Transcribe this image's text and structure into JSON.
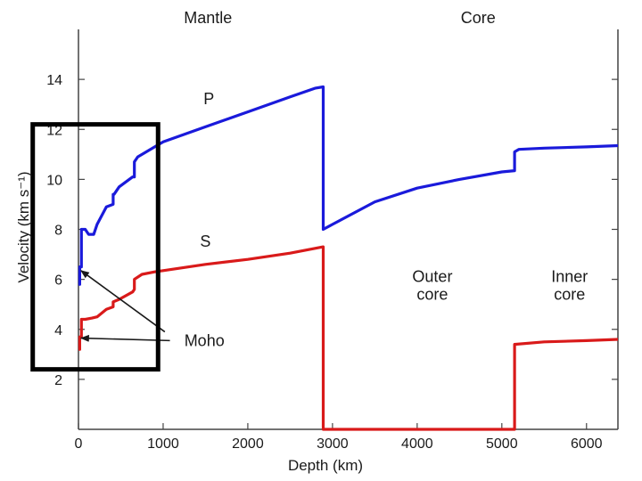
{
  "chart_data": {
    "type": "line",
    "title": "",
    "xlabel": "Depth (km)",
    "ylabel": "Velocity (km s⁻¹)",
    "xlim": [
      0,
      6371
    ],
    "ylim": [
      0,
      16
    ],
    "xticks": [
      0,
      1000,
      2000,
      3000,
      4000,
      5000,
      6000
    ],
    "yticks": [
      2,
      4,
      6,
      8,
      10,
      12,
      14
    ],
    "x_origin_label": "0",
    "regions": [
      {
        "name": "mantle",
        "label": "Mantle",
        "x": 1530
      },
      {
        "name": "core",
        "label": "Core",
        "x": 4720
      }
    ],
    "annotations": [
      {
        "name": "outer-core-label",
        "lines": [
          "Outer",
          "core"
        ],
        "x": 4180,
        "y": 5.9
      },
      {
        "name": "inner-core-label",
        "lines": [
          "Inner",
          "core"
        ],
        "x": 5800,
        "y": 5.9
      },
      {
        "name": "moho-label",
        "text": "Moho",
        "x": 1250,
        "y": 3.55
      }
    ],
    "series": [
      {
        "name": "P",
        "label": "P",
        "color": "#1a1adb",
        "label_at": [
          1540,
          13.0
        ],
        "points": [
          [
            0,
            5.8
          ],
          [
            15,
            5.8
          ],
          [
            15,
            6.5
          ],
          [
            35,
            6.5
          ],
          [
            35,
            8.0
          ],
          [
            80,
            8.0
          ],
          [
            120,
            7.8
          ],
          [
            180,
            7.8
          ],
          [
            220,
            8.2
          ],
          [
            330,
            8.9
          ],
          [
            410,
            9.0
          ],
          [
            410,
            9.4
          ],
          [
            420,
            9.4
          ],
          [
            480,
            9.7
          ],
          [
            640,
            10.1
          ],
          [
            660,
            10.1
          ],
          [
            660,
            10.7
          ],
          [
            700,
            10.9
          ],
          [
            800,
            11.1
          ],
          [
            1000,
            11.5
          ],
          [
            1500,
            12.1
          ],
          [
            2000,
            12.7
          ],
          [
            2500,
            13.3
          ],
          [
            2800,
            13.65
          ],
          [
            2891,
            13.7
          ],
          [
            2891,
            8.0
          ],
          [
            3000,
            8.2
          ],
          [
            3500,
            9.1
          ],
          [
            4000,
            9.65
          ],
          [
            4500,
            10.0
          ],
          [
            5000,
            10.3
          ],
          [
            5150,
            10.35
          ],
          [
            5150,
            11.1
          ],
          [
            5200,
            11.2
          ],
          [
            5500,
            11.25
          ],
          [
            6000,
            11.3
          ],
          [
            6371,
            11.35
          ]
        ]
      },
      {
        "name": "S",
        "label": "S",
        "color": "#d91a1a",
        "label_at": [
          1500,
          7.3
        ],
        "points": [
          [
            0,
            3.2
          ],
          [
            15,
            3.2
          ],
          [
            15,
            3.7
          ],
          [
            35,
            3.7
          ],
          [
            35,
            4.4
          ],
          [
            80,
            4.4
          ],
          [
            160,
            4.45
          ],
          [
            220,
            4.5
          ],
          [
            330,
            4.8
          ],
          [
            410,
            4.9
          ],
          [
            410,
            5.1
          ],
          [
            480,
            5.2
          ],
          [
            640,
            5.5
          ],
          [
            660,
            5.6
          ],
          [
            660,
            6.0
          ],
          [
            750,
            6.2
          ],
          [
            900,
            6.3
          ],
          [
            1000,
            6.35
          ],
          [
            1500,
            6.6
          ],
          [
            2000,
            6.8
          ],
          [
            2500,
            7.05
          ],
          [
            2891,
            7.3
          ],
          [
            2891,
            0
          ],
          [
            5150,
            0
          ],
          [
            5150,
            3.4
          ],
          [
            5500,
            3.5
          ],
          [
            6000,
            3.55
          ],
          [
            6371,
            3.6
          ]
        ]
      }
    ],
    "moho_arrows": [
      {
        "from": [
          1020,
          3.9
        ],
        "to": [
          30,
          6.35
        ]
      },
      {
        "from": [
          1080,
          3.55
        ],
        "to": [
          30,
          3.65
        ]
      }
    ],
    "highlight_box": {
      "x_range": [
        -540,
        940
      ],
      "y_range": [
        2.4,
        12.2
      ]
    }
  }
}
